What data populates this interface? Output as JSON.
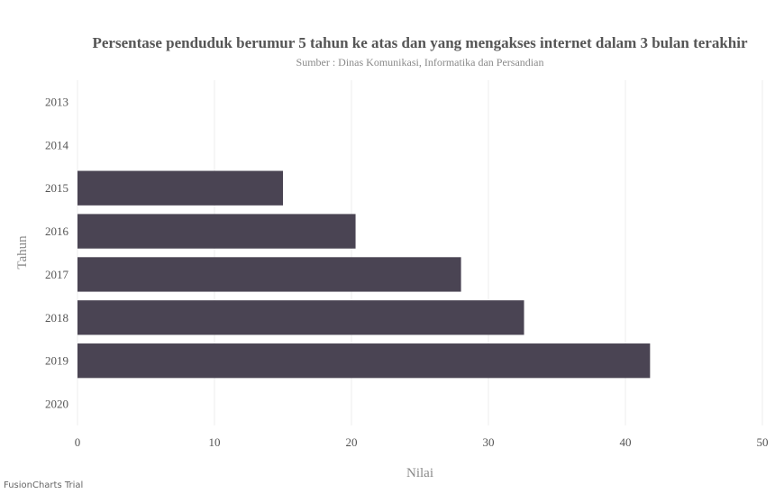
{
  "watermark": "FusionCharts Trial",
  "chart_data": {
    "type": "bar",
    "orientation": "horizontal",
    "title": "Persentase penduduk berumur 5 tahun ke atas dan yang mengakses internet dalam 3 bulan terakhir",
    "subtitle": "Sumber : Dinas Komunikasi, Informatika dan Persandian",
    "xlabel": "Nilai",
    "ylabel": "Tahun",
    "categories": [
      "2013",
      "2014",
      "2015",
      "2016",
      "2017",
      "2018",
      "2019",
      "2020"
    ],
    "values": [
      null,
      null,
      15.0,
      20.3,
      28.0,
      32.6,
      41.8,
      null
    ],
    "xlim": [
      0,
      50
    ],
    "xticks": [
      0,
      10,
      20,
      30,
      40,
      50
    ],
    "grid": true,
    "colors": {
      "bar": "#4a4453"
    }
  }
}
